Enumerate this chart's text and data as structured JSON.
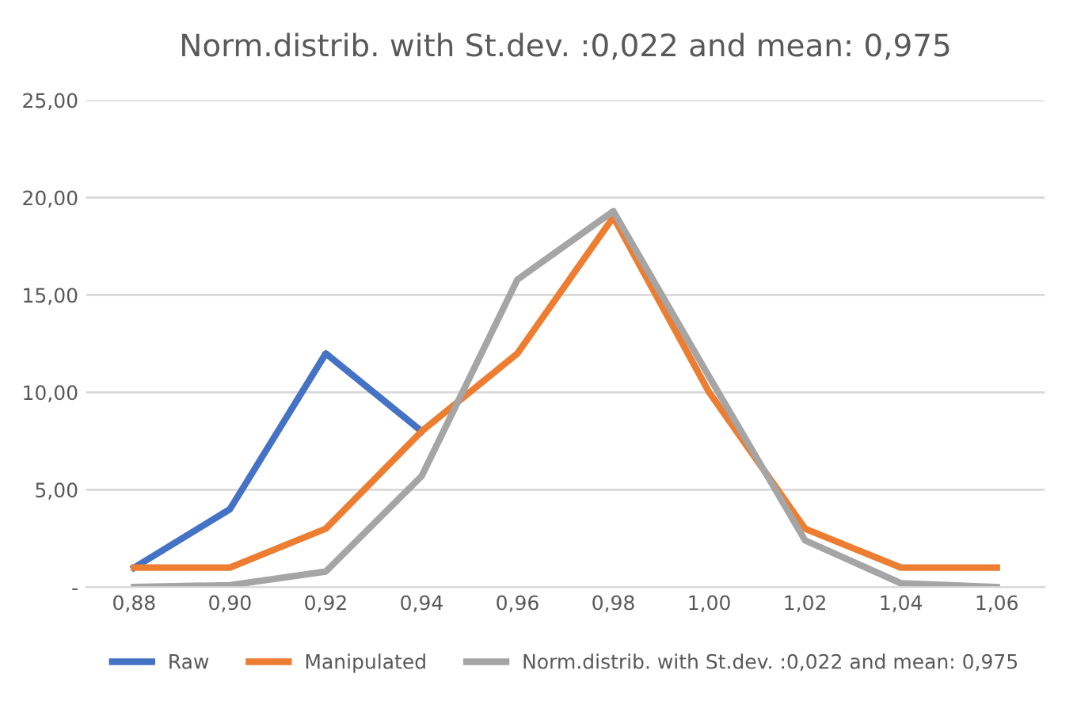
{
  "chart_data": {
    "type": "line",
    "title": "Norm.distrib. with St.dev. :0,022 and mean: 0,975",
    "categories": [
      "0,88",
      "0,90",
      "0,92",
      "0,94",
      "0,96",
      "0,98",
      "1,00",
      "1,02",
      "1,04",
      "1,06"
    ],
    "series": [
      {
        "name": "Raw",
        "color": "#4472c4",
        "values": [
          1,
          4,
          12,
          8,
          null,
          null,
          null,
          null,
          null,
          null
        ]
      },
      {
        "name": "Manipulated",
        "color": "#ed7d31",
        "values": [
          1,
          1,
          3,
          8,
          12,
          19,
          10,
          3,
          1,
          1
        ]
      },
      {
        "name": "Norm.distrib. with St.dev. :0,022 and mean: 0,975",
        "color": "#a5a5a5",
        "values": [
          0.0,
          0.1,
          0.8,
          5.7,
          15.8,
          19.3,
          10.8,
          2.4,
          0.2,
          0.0
        ]
      }
    ],
    "ylim": [
      0,
      25
    ],
    "yticks": [
      {
        "value": 0,
        "label": "-"
      },
      {
        "value": 5,
        "label": "5,00"
      },
      {
        "value": 10,
        "label": "10,00"
      },
      {
        "value": 15,
        "label": "15,00"
      },
      {
        "value": 20,
        "label": "20,00"
      },
      {
        "value": 25,
        "label": "25,00"
      }
    ],
    "grid": "y",
    "legend": "bottom",
    "marker": "none",
    "line_style": "solid"
  }
}
